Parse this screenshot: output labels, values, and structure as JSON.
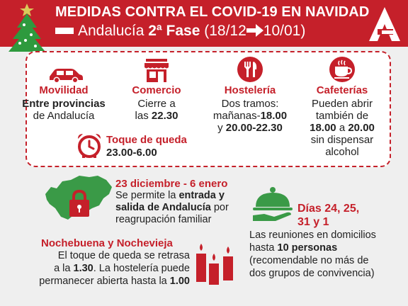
{
  "header": {
    "title": "MEDIDAS CONTRA EL COVID-19 EN NAVIDAD",
    "subtitle_region": "Andalucía",
    "subtitle_phase": "2ª Fase",
    "subtitle_from": "(18/12",
    "subtitle_to": "10/01)"
  },
  "measures": {
    "movilidad": {
      "label": "Movilidad",
      "line1": "Entre provincias",
      "line2": "de Andalucía"
    },
    "comercio": {
      "label": "Comercio",
      "line1": "Cierre a",
      "line2_pre": "las ",
      "line2_bold": "22.30"
    },
    "hosteleria": {
      "label": "Hostelería",
      "line1": "Dos tramos:",
      "line2_pre": "mañanas-",
      "line2_bold": "18.00",
      "line3_bold1": "20.00-22.30",
      "line3_pre": "y "
    },
    "cafeterias": {
      "label": "Cafeterías",
      "line1": "Pueden abrir",
      "line2": "también de",
      "line3_bold1": "18.00",
      "line3_mid": " a ",
      "line3_bold2": "20.00",
      "line4": "sin dispensar",
      "line5": "alcohol"
    },
    "toque": {
      "label": "Toque de queda",
      "time": "23.00-6.00"
    }
  },
  "entrada": {
    "heading": "23 diciembre - 6 enero",
    "line1_pre": "Se permite la ",
    "line1_bold": "entrada y",
    "line2_bold": "salida de Andalucía",
    "line2_post": " por",
    "line3": "reagrupación familiar"
  },
  "nochebuena": {
    "heading": "Nochebuena y Nochevieja",
    "line1": "El toque de queda se retrasa",
    "line2_pre": "a la ",
    "line2_bold": "1.30",
    "line2_post": ". La hostelería puede",
    "line3_pre": "permanecer abierta hasta la ",
    "line3_bold": "1.00"
  },
  "dias": {
    "heading_line1": "Días 24, 25,",
    "heading_line2": "31 y 1",
    "line1": "Las reuniones en domicilios",
    "line2_pre": "hasta ",
    "line2_bold": "10 personas",
    "line3": "(recomendable no más de",
    "line4": "dos grupos de convivencia)"
  },
  "colors": {
    "brand_red": "#c5202a",
    "background": "#efefef",
    "tree_green": "#2e9a3e"
  },
  "icons": [
    "christmas-tree-icon",
    "andalucia-logo-icon",
    "car-icon",
    "shop-icon",
    "cutlery-icon",
    "coffee-cup-icon",
    "alarm-clock-icon",
    "padlock-map-icon",
    "cloche-icon",
    "candles-icon"
  ]
}
